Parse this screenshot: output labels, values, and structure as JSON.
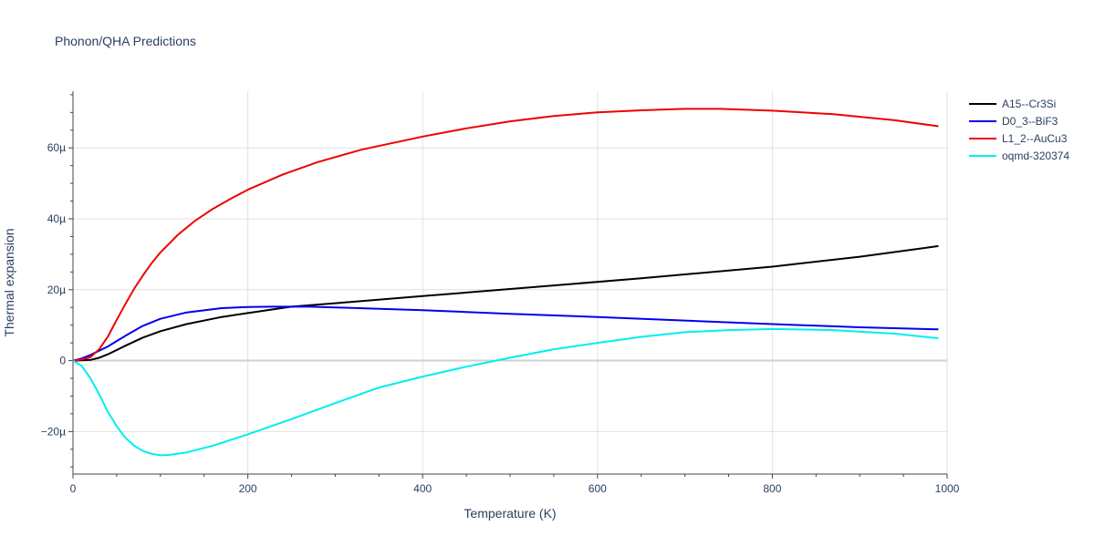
{
  "chart_data": {
    "type": "line",
    "title": "Phonon/QHA Predictions",
    "xlabel": "Temperature (K)",
    "ylabel": "Thermal expansion",
    "xlim": [
      0,
      1000
    ],
    "ylim": [
      -32,
      76
    ],
    "x_ticks": [
      0,
      200,
      400,
      600,
      800,
      1000
    ],
    "x_tick_labels": [
      "0",
      "200",
      "400",
      "600",
      "800",
      "1000"
    ],
    "y_ticks": [
      -20,
      0,
      20,
      40,
      60
    ],
    "y_tick_labels": [
      "−20µ",
      "0",
      "20µ",
      "40µ",
      "60µ"
    ],
    "grid": true,
    "legend_position": "top-right, outside plot",
    "series": [
      {
        "name": "A15--Cr3Si",
        "color": "#000000",
        "x": [
          0,
          20,
          30,
          40,
          60,
          80,
          100,
          130,
          170,
          200,
          250,
          300,
          400,
          500,
          650,
          800,
          900,
          990
        ],
        "y": [
          0,
          0.2,
          0.8,
          1.8,
          4.2,
          6.5,
          8.3,
          10.3,
          12.3,
          13.4,
          15.2,
          16.2,
          18.2,
          20.2,
          23.2,
          26.5,
          29.3,
          32.3
        ]
      },
      {
        "name": "D0_3--BiF3",
        "color": "#0000ee",
        "x": [
          0,
          10,
          20,
          40,
          60,
          80,
          100,
          130,
          170,
          200,
          230,
          270,
          300,
          400,
          500,
          600,
          700,
          800,
          900,
          990
        ],
        "y": [
          0,
          0.6,
          1.6,
          4.0,
          7.0,
          9.8,
          11.8,
          13.6,
          14.8,
          15.1,
          15.2,
          15.2,
          15.0,
          14.2,
          13.2,
          12.3,
          11.3,
          10.3,
          9.4,
          8.8
        ]
      },
      {
        "name": "L1_2--AuCu3",
        "color": "#ee0000",
        "x": [
          0,
          10,
          20,
          30,
          40,
          50,
          60,
          70,
          80,
          90,
          100,
          120,
          140,
          160,
          180,
          200,
          240,
          280,
          330,
          400,
          450,
          500,
          550,
          600,
          650,
          700,
          740,
          800,
          870,
          940,
          990
        ],
        "y": [
          0,
          0.3,
          1.0,
          3.2,
          6.8,
          11.5,
          16.0,
          20.3,
          24.0,
          27.5,
          30.5,
          35.5,
          39.5,
          42.8,
          45.6,
          48.2,
          52.5,
          56.0,
          59.5,
          63.2,
          65.5,
          67.5,
          69.0,
          70.0,
          70.6,
          71.0,
          71.0,
          70.5,
          69.5,
          67.8,
          66.1
        ]
      },
      {
        "name": "oqmd-320374",
        "color": "#00eeee",
        "x": [
          0,
          10,
          20,
          30,
          40,
          50,
          60,
          70,
          80,
          90,
          100,
          110,
          130,
          160,
          200,
          250,
          300,
          350,
          400,
          450,
          500,
          550,
          600,
          650,
          700,
          750,
          800,
          870,
          940,
          990
        ],
        "y": [
          0,
          -1.5,
          -5.0,
          -9.5,
          -14.5,
          -18.5,
          -21.8,
          -24.0,
          -25.5,
          -26.3,
          -26.7,
          -26.6,
          -25.9,
          -24.0,
          -20.8,
          -16.5,
          -12.0,
          -7.6,
          -4.5,
          -1.7,
          0.8,
          3.2,
          5.0,
          6.7,
          8.0,
          8.6,
          8.9,
          8.6,
          7.6,
          6.3
        ]
      }
    ]
  }
}
